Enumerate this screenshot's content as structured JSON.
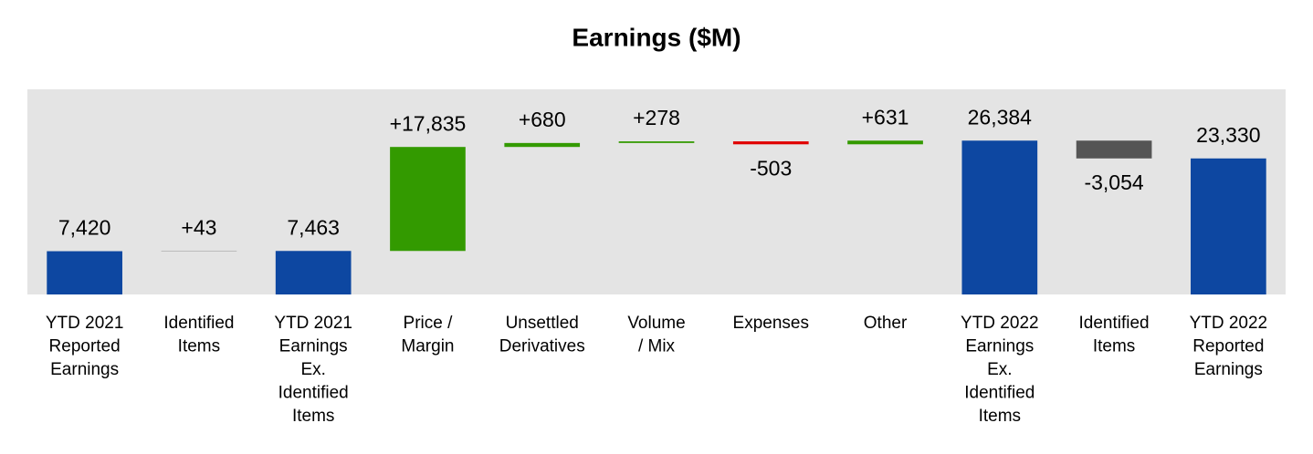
{
  "chart_data": {
    "type": "waterfall",
    "title": "Earnings ($M)",
    "categories": [
      [
        "YTD 2021",
        "Reported",
        "Earnings"
      ],
      [
        "Identified",
        "Items"
      ],
      [
        "YTD 2021",
        "Earnings",
        "Ex.",
        "Identified",
        "Items"
      ],
      [
        "Price /",
        "Margin"
      ],
      [
        "Unsettled",
        "Derivatives"
      ],
      [
        "Volume",
        "/ Mix"
      ],
      [
        "Expenses"
      ],
      [
        "Other"
      ],
      [
        "YTD 2022",
        "Earnings",
        "Ex.",
        "Identified",
        "Items"
      ],
      [
        "Identified",
        "Items"
      ],
      [
        "YTD 2022",
        "Reported",
        "Earnings"
      ]
    ],
    "measures": [
      "absolute",
      "relative",
      "total",
      "relative",
      "relative",
      "relative",
      "relative",
      "relative",
      "total",
      "relative",
      "total"
    ],
    "values": [
      7420,
      43,
      7463,
      17835,
      680,
      278,
      -503,
      631,
      26384,
      -3054,
      23330
    ],
    "value_labels": [
      "7,420",
      "+43",
      "7,463",
      "+17,835",
      "+680",
      "+278",
      "-503",
      "+631",
      "26,384",
      "-3,054",
      "23,330"
    ],
    "colors": [
      "#0d47a1",
      "#555555",
      "#0d47a1",
      "#339a00",
      "#339a00",
      "#339a00",
      "#e00000",
      "#339a00",
      "#0d47a1",
      "#555555",
      "#0d47a1"
    ]
  }
}
